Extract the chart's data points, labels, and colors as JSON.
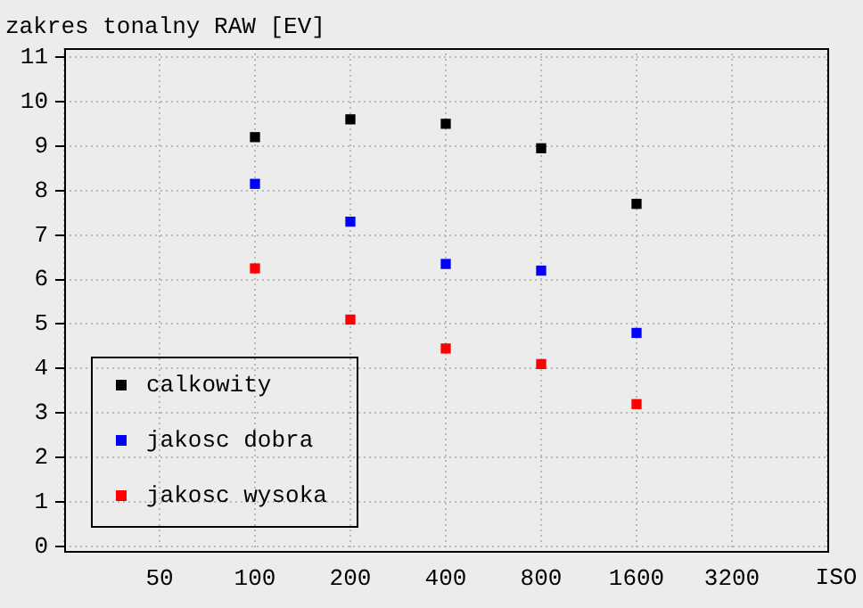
{
  "chart_data": {
    "type": "scatter",
    "ylabel": "zakres tonalny RAW [EV]",
    "xlabel": "ISO",
    "categories": [
      null,
      "50",
      "100",
      "200",
      "400",
      "800",
      "1600",
      "3200",
      null
    ],
    "ylim": [
      -0.1,
      11.2
    ],
    "yticks": [
      0,
      1,
      2,
      3,
      4,
      5,
      6,
      7,
      8,
      9,
      10,
      11
    ],
    "grid": true,
    "legend": "bottom left",
    "marker": "square",
    "series": [
      {
        "name": "calkowity",
        "color": "#000000",
        "values": [
          null,
          null,
          9.2,
          9.6,
          9.5,
          8.95,
          7.7,
          null,
          null
        ]
      },
      {
        "name": "jakosc dobra",
        "color": "#0000ff",
        "values": [
          null,
          null,
          8.15,
          7.3,
          6.35,
          6.2,
          4.8,
          null,
          null
        ]
      },
      {
        "name": "jakosc wysoka",
        "color": "#ff0000",
        "values": [
          null,
          null,
          6.25,
          5.1,
          4.45,
          4.1,
          3.2,
          null,
          null
        ]
      }
    ]
  }
}
